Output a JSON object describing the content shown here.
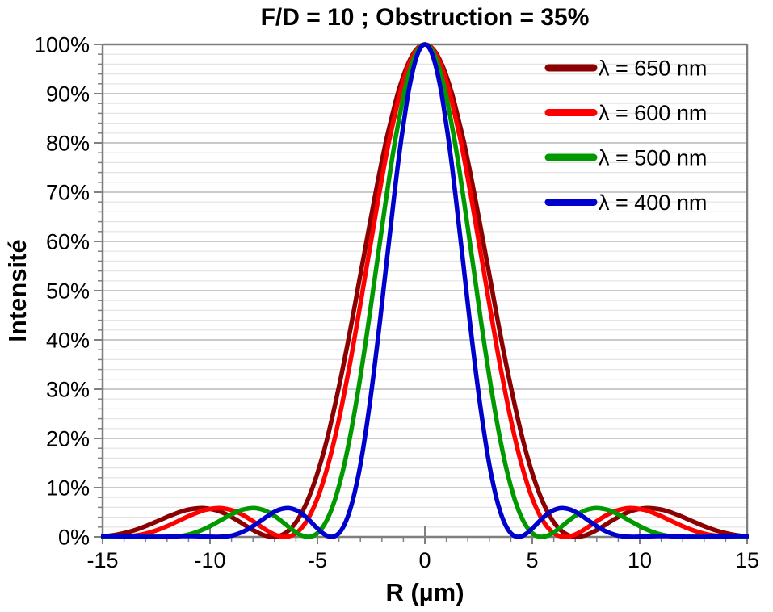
{
  "background": "#FFFFFF",
  "chart_data": {
    "type": "line",
    "title": "F/D = 10 ; Obstruction = 35%",
    "xlabel": "R (µm)",
    "ylabel": "Intensité",
    "f_over_d": 10,
    "obstruction_pct": 35,
    "xlim": [
      -15,
      15
    ],
    "ylim_pct": [
      0,
      100
    ],
    "x_ticks_major": [
      -15,
      -10,
      -5,
      0,
      5,
      10,
      15
    ],
    "x_tick_minor_step": 1,
    "y_ticks_major_pct": [
      0,
      10,
      20,
      30,
      40,
      50,
      60,
      70,
      80,
      90,
      100
    ],
    "y_tick_minor_step_pct": 2,
    "y_tick_suffix": "%",
    "grid": {
      "minor_color": "#E3E3E3",
      "major_color": "#C2C2C2",
      "axis_color": "#7F7F7F",
      "horizontal_only": true
    },
    "legend_position": "inside-top-right",
    "series": [
      {
        "label": "λ = 650 nm",
        "wavelength_nm": 650,
        "color": "#8B0000",
        "x_um_per_v": 2.069014,
        "peak_pct": 100,
        "first_zero_um": 7.06,
        "first_ring_peak_um": 10.45,
        "first_ring_peak_pct": 5.85
      },
      {
        "label": "λ = 600 nm",
        "wavelength_nm": 600,
        "color": "#FF0000",
        "x_um_per_v": 1.909859,
        "peak_pct": 100,
        "first_zero_um": 6.51,
        "first_ring_peak_um": 9.64,
        "first_ring_peak_pct": 5.85
      },
      {
        "label": "λ = 500 nm",
        "wavelength_nm": 500,
        "color": "#009900",
        "x_um_per_v": 1.591549,
        "peak_pct": 100,
        "first_zero_um": 5.43,
        "first_ring_peak_um": 8.04,
        "first_ring_peak_pct": 5.85
      },
      {
        "label": "λ = 400 nm",
        "wavelength_nm": 400,
        "color": "#0000CC",
        "x_um_per_v": 1.27324,
        "peak_pct": 100,
        "first_zero_um": 4.34,
        "first_ring_peak_um": 6.43,
        "first_ring_peak_pct": 5.85
      }
    ],
    "profile": {
      "note": "Diffraction intensity profile of a 35%-obstructed circular aperture at F/D=10; curves are symmetric about R=0. For each series: x_um = v * x_um_per_v, y = intensity_pct.",
      "v": [
        0,
        0.125,
        0.25,
        0.375,
        0.5,
        0.625,
        0.75,
        0.875,
        1,
        1.125,
        1.25,
        1.375,
        1.5,
        1.625,
        1.75,
        1.875,
        2,
        2.125,
        2.25,
        2.375,
        2.5,
        2.625,
        2.75,
        2.875,
        3,
        3.125,
        3.25,
        3.375,
        3.5,
        3.625,
        3.75,
        3.875,
        4,
        4.125,
        4.25,
        4.375,
        4.5,
        4.625,
        4.75,
        4.875,
        5,
        5.125,
        5.25,
        5.375,
        5.5,
        5.625,
        5.75,
        5.875,
        6,
        6.25,
        6.5,
        6.75,
        7,
        7.25,
        7.5,
        7.75,
        8,
        8.25,
        8.5,
        8.75,
        9,
        9.25,
        9.5,
        9.75,
        10,
        10.5,
        11,
        11.5,
        12
      ],
      "intensity_pct": [
        100,
        99.56,
        98.26,
        96.12,
        93.18,
        89.51,
        84.99,
        80.29,
        74.93,
        69.1,
        63.03,
        56.91,
        50.82,
        44.63,
        38.66,
        32.99,
        27.67,
        22.66,
        18.15,
        14.14,
        10.66,
        7.68,
        5.23,
        3.3,
        1.86,
        0.86,
        0.26,
        0.01,
        0.07,
        0.36,
        0.83,
        1.44,
        2.12,
        2.83,
        3.52,
        4.16,
        4.73,
        5.19,
        5.53,
        5.75,
        5.85,
        5.81,
        5.66,
        5.43,
        5.09,
        4.68,
        4.23,
        3.75,
        3.26,
        2.3,
        1.46,
        0.8,
        0.35,
        0.1,
        0.01,
        0.01,
        0.07,
        0.13,
        0.16,
        0.17,
        0.14,
        0.09,
        0.04,
        0.01,
        0.0,
        0.05,
        0.13,
        0.16,
        0.16
      ]
    }
  }
}
